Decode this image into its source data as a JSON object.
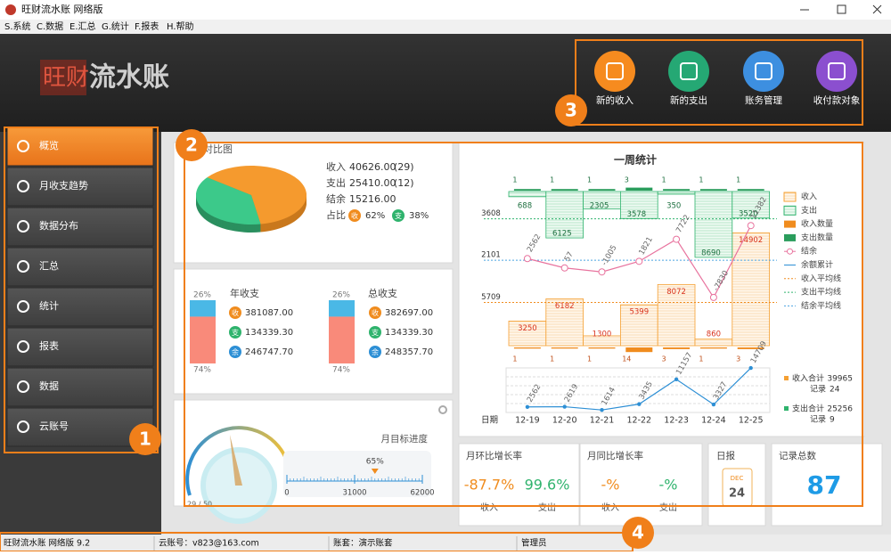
{
  "window": {
    "title": "旺财流水账 网络版"
  },
  "menu": [
    "S.系统",
    "C.数据",
    "E.汇总",
    "G.统计",
    "F.报表",
    "H.帮助"
  ],
  "logo": {
    "brand": "旺财",
    "name": "流水账"
  },
  "toolbar": [
    "新的收入",
    "新的支出",
    "账务管理",
    "收付款对象"
  ],
  "sidebar": [
    "概览",
    "月收支趋势",
    "数据分布",
    "汇总",
    "统计",
    "报表",
    "数据",
    "云账号"
  ],
  "callouts": [
    "1",
    "2",
    "3",
    "4"
  ],
  "summary": {
    "title": "对比图",
    "rows": [
      {
        "label": "收入",
        "amount": "40626.00",
        "count": "(29)"
      },
      {
        "label": "支出",
        "amount": "25410.00",
        "count": "(12)"
      },
      {
        "label": "结余",
        "amount": "15216.00"
      }
    ],
    "share_label": "占比",
    "badges": [
      "收",
      "支"
    ],
    "pie": {
      "type": "pie",
      "values": [
        62,
        38
      ],
      "value_labels": [
        "62%",
        "38%"
      ],
      "colors": [
        "#f59a2e",
        "#3cc98a"
      ]
    }
  },
  "annual": {
    "title": "年收支",
    "values": [
      26,
      74
    ],
    "value_labels": [
      "26%",
      "74%"
    ],
    "items": [
      {
        "badge": "收",
        "value": "381087.00"
      },
      {
        "badge": "支",
        "value": "134339.30"
      },
      {
        "badge": "余",
        "value": "246747.70"
      }
    ]
  },
  "total": {
    "title": "总收支",
    "values": [
      26,
      74
    ],
    "value_labels": [
      "26%",
      "74%"
    ],
    "items": [
      {
        "badge": "收",
        "value": "382697.00"
      },
      {
        "badge": "支",
        "value": "134339.30"
      },
      {
        "badge": "余",
        "value": "248357.70"
      }
    ]
  },
  "gauge": {
    "count": "29 / 50",
    "title": "月目标进度",
    "percent": 65,
    "percent_label": "65%",
    "xlim": [
      0,
      62000
    ],
    "xticks": [
      0,
      31000,
      62000
    ]
  },
  "week": {
    "title": "一周统计",
    "x_label": "日期",
    "categories": [
      "12-19",
      "12-20",
      "12-21",
      "12-22",
      "12-23",
      "12-24",
      "12-25"
    ],
    "series": [
      {
        "name": "收入",
        "color": "#f5a033",
        "values": [
          3250,
          6182,
          1300,
          5399,
          8072,
          860,
          14902
        ]
      },
      {
        "name": "支出",
        "color": "#2fb36d",
        "values": [
          688,
          6125,
          2305,
          3578,
          350,
          8690,
          3520
        ]
      },
      {
        "name": "收入数量",
        "color": "#f08c1e",
        "values": [
          1,
          1,
          1,
          14,
          3,
          1,
          3
        ]
      },
      {
        "name": "支出数量",
        "color": "#2a9d5c",
        "values": [
          1,
          1,
          1,
          3,
          1,
          1,
          1
        ]
      },
      {
        "name": "结余",
        "color": "#e8739e",
        "values": [
          2562,
          57,
          -1005,
          1821,
          7722,
          -7830,
          11382
        ]
      },
      {
        "name": "余额累计",
        "color": "#2d8fd5",
        "values": [
          2562,
          2619,
          1614,
          3435,
          11157,
          3327,
          14709
        ]
      }
    ],
    "averages": [
      {
        "name": "收入平均线",
        "color": "#f08c1e",
        "value": 5709
      },
      {
        "name": "支出平均线",
        "color": "#2fb36d",
        "value": 3608
      },
      {
        "name": "结余平均线",
        "color": "#4aa3e0",
        "value": 2101
      }
    ],
    "totals": [
      {
        "label": "收入合计",
        "value": 39965,
        "record_label": "记录",
        "records": 24
      },
      {
        "label": "支出合计",
        "value": 25256,
        "record_label": "记录",
        "records": 9
      }
    ]
  },
  "mom": {
    "title": "月环比增长率",
    "cells": [
      {
        "value": "-87.7%",
        "label": "收入"
      },
      {
        "value": "99.6%",
        "label": "支出"
      }
    ]
  },
  "yoy": {
    "title": "月同比增长率",
    "cells": [
      {
        "value": "-%",
        "label": "收入"
      },
      {
        "value": "-%",
        "label": "支出"
      }
    ]
  },
  "daily": {
    "title": "日报",
    "month": "DEC",
    "day": "24"
  },
  "records": {
    "title": "记录总数",
    "value": "87"
  },
  "status": [
    "旺财流水账 网络版 9.2",
    "云账号：v823@163.com",
    "账套：演示账套",
    "管理员"
  ]
}
